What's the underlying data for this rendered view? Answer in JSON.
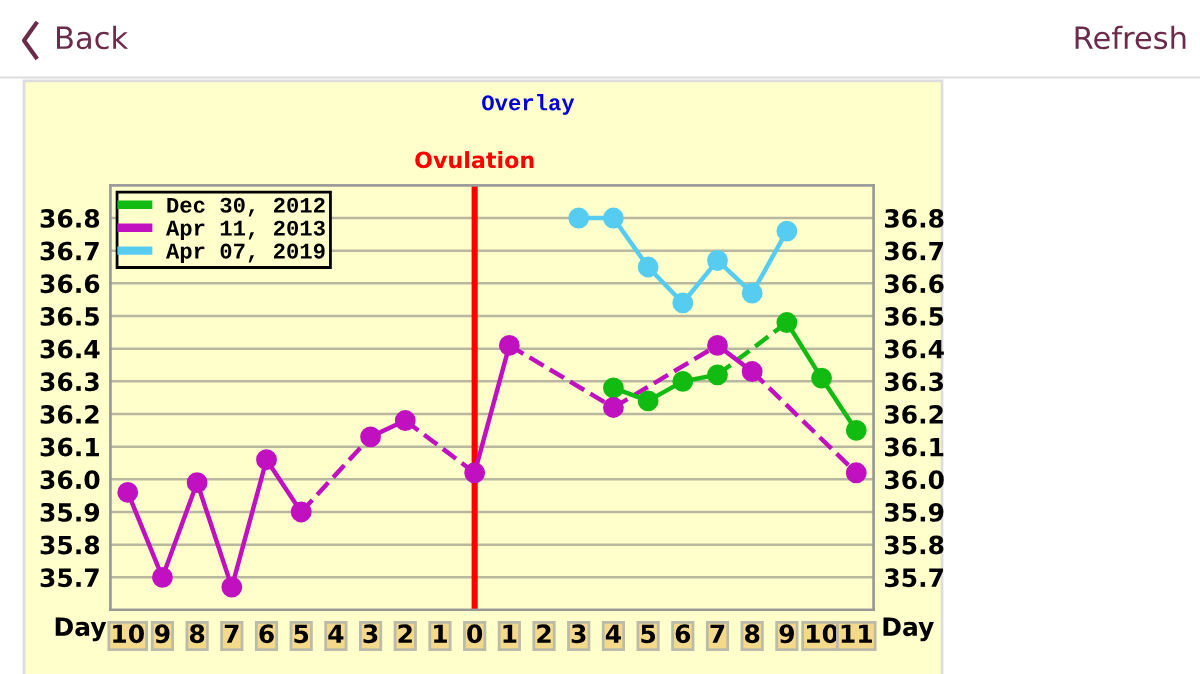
{
  "chart_data": {
    "type": "line",
    "title": "Overlay",
    "xlabel": "Day",
    "annotations": [
      "Back",
      "Refresh"
    ],
    "x": [
      -10,
      -9,
      -8,
      -7,
      -6,
      -5,
      -4,
      -3,
      -2,
      -1,
      0,
      1,
      2,
      3,
      4,
      5,
      6,
      7,
      8,
      9,
      10,
      11
    ],
    "series": [
      {
        "name": "Dec 30, 2012",
        "color": "#11bb11",
        "values": [
          null,
          null,
          null,
          null,
          null,
          null,
          null,
          null,
          null,
          null,
          null,
          null,
          null,
          null,
          36.28,
          36.24,
          36.3,
          36.32,
          null,
          36.48,
          36.31,
          36.15
        ]
      },
      {
        "name": "Apr 11, 2013",
        "color": "#c010c0",
        "values": [
          35.96,
          35.7,
          35.99,
          35.67,
          36.06,
          35.9,
          null,
          36.13,
          36.18,
          null,
          36.02,
          36.41,
          null,
          null,
          36.22,
          null,
          null,
          36.41,
          36.33,
          null,
          null,
          36.02
        ]
      },
      {
        "name": "Apr 07, 2019",
        "color": "#55ccf0",
        "values": [
          null,
          null,
          null,
          null,
          null,
          null,
          null,
          null,
          null,
          null,
          null,
          null,
          null,
          36.8,
          36.8,
          36.65,
          36.54,
          36.67,
          36.57,
          36.76,
          null,
          null
        ]
      }
    ],
    "xlim": [
      -10.5,
      11.5
    ],
    "xticks": [
      {
        "value": -10,
        "label": "10"
      },
      {
        "value": -9,
        "label": "9"
      },
      {
        "value": -8,
        "label": "8"
      },
      {
        "value": -7,
        "label": "7"
      },
      {
        "value": -6,
        "label": "6"
      },
      {
        "value": -5,
        "label": "5"
      },
      {
        "value": -4,
        "label": "4"
      },
      {
        "value": -3,
        "label": "3"
      },
      {
        "value": -2,
        "label": "2"
      },
      {
        "value": -1,
        "label": "1"
      },
      0,
      1,
      2,
      3,
      4,
      5,
      6,
      7,
      8,
      9,
      10,
      11
    ],
    "ylim": [
      35.6,
      36.9
    ],
    "yticks": [
      35.7,
      35.8,
      35.9,
      {
        "value": 36.0,
        "label": "36.0"
      },
      36.1,
      36.2,
      36.3,
      36.4,
      36.5,
      36.6,
      36.7,
      36.8
    ],
    "y2lim": [
      35.6,
      36.9
    ],
    "y2ticks": [
      35.7,
      35.8,
      35.9,
      {
        "value": 36.0,
        "label": "36.0"
      },
      36.1,
      36.2,
      36.3,
      36.4,
      36.5,
      36.6,
      36.7,
      36.8
    ],
    "ref_lines": [
      {
        "axis": "x",
        "value": 0,
        "label": "Ovulation",
        "color": "#ff0000"
      }
    ],
    "grid": true,
    "legend": "top left",
    "marker": "circle",
    "line_style": "solid"
  }
}
